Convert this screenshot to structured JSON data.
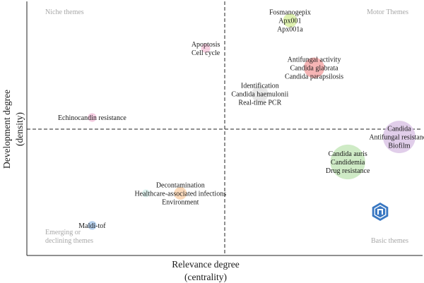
{
  "chart_data": {
    "type": "scatter",
    "title": "",
    "xlabel": [
      "Relevance degree",
      "(centrality)"
    ],
    "ylabel": [
      "Development degree",
      "(density)"
    ],
    "xlim": [
      0,
      10
    ],
    "ylim": [
      0,
      10
    ],
    "divider": {
      "x": 5.0,
      "y": 5.0
    },
    "grid": false,
    "quadrant_labels": {
      "top_left": [
        "Niche themes"
      ],
      "top_right": [
        "Motor Themes"
      ],
      "bottom_left": [
        "Emerging or",
        "declining themes"
      ],
      "bottom_right": [
        "Basic themes"
      ]
    },
    "points": [
      {
        "x": 6.65,
        "y": 9.3,
        "size": 0.35,
        "color": "#d9f0a3",
        "labels": [
          "Fosmanogepix",
          "Apx001",
          "Apx001a"
        ]
      },
      {
        "x": 4.52,
        "y": 8.2,
        "size": 0.23,
        "color": "#f6c8dc",
        "labels": [
          "Apoptosis",
          "Cell cycle"
        ]
      },
      {
        "x": 7.26,
        "y": 7.43,
        "size": 0.52,
        "color": "#f4a8a8",
        "labels": [
          "Antifungal activity",
          "Candida glabrata",
          "Candida parapsilosis"
        ]
      },
      {
        "x": 5.89,
        "y": 6.39,
        "size": 0.42,
        "color": "#e4e4e4",
        "labels": [
          "Identification",
          "Candida haemulonii",
          "Real-time PCR"
        ]
      },
      {
        "x": 1.65,
        "y": 5.46,
        "size": 0.22,
        "color": "#f3c6dd",
        "labels": [
          "Echinocandin resistance"
        ]
      },
      {
        "x": 9.41,
        "y": 4.69,
        "size": 0.82,
        "color": "#dcc6e6",
        "labels": [
          "Candida",
          "Antifungal resistance",
          "Biofilm"
        ]
      },
      {
        "x": 8.11,
        "y": 3.7,
        "size": 0.88,
        "color": "#c7e8bc",
        "labels": [
          "Candida auris",
          "Candidemia",
          "Drug resistance"
        ]
      },
      {
        "x": 3.88,
        "y": 2.46,
        "size": 0.32,
        "color": "#fbd5b0",
        "labels": [
          "Decontamination",
          "Healthcare-associated infections",
          "Environment"
        ]
      },
      {
        "x": 3.01,
        "y": 2.46,
        "size": 0.2,
        "color": "#d8f0ec",
        "labels": []
      },
      {
        "x": 1.65,
        "y": 1.19,
        "size": 0.22,
        "color": "#a9c8ea",
        "labels": [
          "Maldi-tof"
        ]
      }
    ]
  },
  "logo": {
    "name": "hindawi-logo",
    "color": "#3a78c2"
  }
}
